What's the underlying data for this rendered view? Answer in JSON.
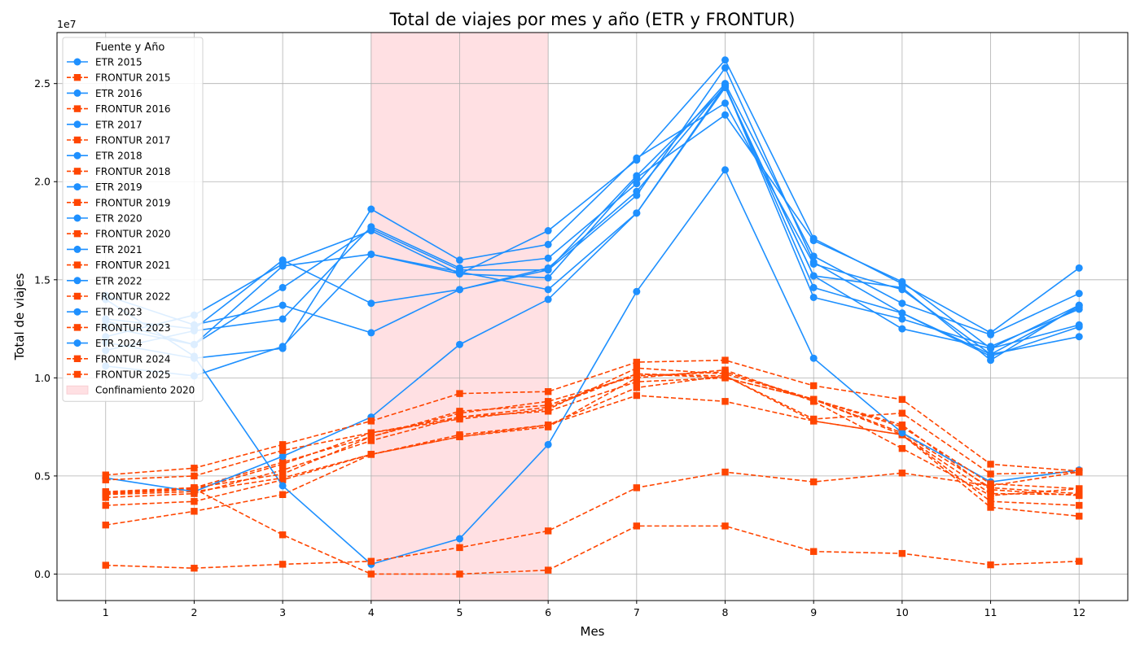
{
  "chart_data": {
    "type": "line",
    "title": "Total de viajes por mes y año (ETR y FRONTUR)",
    "xlabel": "Mes",
    "ylabel": "Total de viajes",
    "y_offset_label": "1e7",
    "x": [
      1,
      2,
      3,
      4,
      5,
      6,
      7,
      8,
      9,
      10,
      11,
      12
    ],
    "xlim": [
      0.45,
      12.55
    ],
    "ylim": [
      -1350000,
      27600000
    ],
    "y_ticks": [
      0,
      5000000,
      10000000,
      15000000,
      20000000,
      25000000
    ],
    "y_tick_labels": [
      "0.0",
      "0.5",
      "1.0",
      "1.5",
      "2.0",
      "2.5"
    ],
    "grid": true,
    "legend": {
      "title": "Fuente y Año",
      "position": "upper-left"
    },
    "shaded_region": {
      "label": "Confinamiento 2020",
      "x_start": 4,
      "x_end": 6,
      "color": "#ffe0e3"
    },
    "colors": {
      "etr": "#1e90ff",
      "frontur": "#ff4500"
    },
    "series": [
      {
        "name": "ETR 2015",
        "source": "ETR",
        "values": [
          14200000,
          12700000,
          13700000,
          12300000,
          14500000,
          15500000,
          19300000,
          25800000,
          15900000,
          13300000,
          11100000,
          12600000
        ]
      },
      {
        "name": "FRONTUR 2015",
        "source": "FRONTUR",
        "values": [
          2500000,
          3200000,
          4050000,
          6100000,
          7100000,
          7600000,
          9500000,
          10100000,
          7800000,
          7100000,
          3400000,
          2950000
        ]
      },
      {
        "name": "ETR 2016",
        "source": "ETR",
        "values": [
          13000000,
          12500000,
          16000000,
          13800000,
          14500000,
          15600000,
          19500000,
          24900000,
          14100000,
          13000000,
          11600000,
          13500000
        ]
      },
      {
        "name": "FRONTUR 2016",
        "source": "FRONTUR",
        "values": [
          3500000,
          3700000,
          4800000,
          6100000,
          7000000,
          7600000,
          9100000,
          8800000,
          7800000,
          7100000,
          3700000,
          3500000
        ]
      },
      {
        "name": "ETR 2017",
        "source": "ETR",
        "values": [
          12600000,
          11700000,
          14600000,
          17600000,
          15500000,
          15500000,
          20300000,
          24800000,
          15200000,
          14600000,
          10900000,
          13700000
        ]
      },
      {
        "name": "FRONTUR 2017",
        "source": "FRONTUR",
        "values": [
          3900000,
          4100000,
          5300000,
          6800000,
          8000000,
          8300000,
          9800000,
          10000000,
          8900000,
          7100000,
          4100000,
          4050000
        ]
      },
      {
        "name": "ETR 2018",
        "source": "ETR",
        "values": [
          12900000,
          11700000,
          15700000,
          16300000,
          15300000,
          15100000,
          20200000,
          23400000,
          17000000,
          14900000,
          11500000,
          12700000
        ]
      },
      {
        "name": "FRONTUR 2018",
        "source": "FRONTUR",
        "values": [
          4100000,
          4300000,
          5600000,
          7200000,
          8000000,
          8500000,
          10200000,
          10000000,
          8900000,
          7200000,
          4400000,
          4100000
        ]
      },
      {
        "name": "ETR 2019",
        "source": "ETR",
        "values": [
          11800000,
          11000000,
          11500000,
          18600000,
          16000000,
          16800000,
          21200000,
          24000000,
          15800000,
          14500000,
          11200000,
          13600000
        ]
      },
      {
        "name": "FRONTUR 2019",
        "source": "FRONTUR",
        "values": [
          4200000,
          4400000,
          5700000,
          7000000,
          8200000,
          8800000,
          10100000,
          10300000,
          8900000,
          7600000,
          4300000,
          4000000
        ]
      },
      {
        "name": "ETR 2020",
        "source": "ETR",
        "values": [
          14000000,
          11100000,
          4500000,
          500000,
          1800000,
          6600000,
          14400000,
          20600000,
          11000000,
          7200000,
          4700000,
          5300000
        ]
      },
      {
        "name": "FRONTUR 2020",
        "source": "FRONTUR",
        "values": [
          4100000,
          4350000,
          2000000,
          0,
          0,
          200000,
          2450000,
          2450000,
          1150000,
          1050000,
          470000,
          650000
        ]
      },
      {
        "name": "ETR 2021",
        "source": "ETR",
        "values": [
          4900000,
          4200000,
          6000000,
          8000000,
          11700000,
          14000000,
          18400000,
          24900000,
          14600000,
          13300000,
          11200000,
          12100000
        ]
      },
      {
        "name": "FRONTUR 2021",
        "source": "FRONTUR",
        "values": [
          450000,
          300000,
          500000,
          650000,
          1350000,
          2200000,
          4400000,
          5200000,
          4700000,
          5150000,
          4500000,
          5200000
        ]
      },
      {
        "name": "ETR 2022",
        "source": "ETR",
        "values": [
          10600000,
          10100000,
          11600000,
          16300000,
          15400000,
          14500000,
          18400000,
          24800000,
          15200000,
          12500000,
          11500000,
          13700000
        ]
      },
      {
        "name": "FRONTUR 2022",
        "source": "FRONTUR",
        "values": [
          4050000,
          4200000,
          4900000,
          6100000,
          7000000,
          7500000,
          10000000,
          10400000,
          8800000,
          6400000,
          4000000,
          4350000
        ]
      },
      {
        "name": "ETR 2023",
        "source": "ETR",
        "values": [
          11400000,
          12400000,
          13000000,
          17700000,
          15600000,
          16100000,
          19900000,
          25000000,
          16200000,
          13800000,
          12200000,
          14300000
        ]
      },
      {
        "name": "FRONTUR 2023",
        "source": "FRONTUR",
        "values": [
          4800000,
          5000000,
          6300000,
          7200000,
          7900000,
          8400000,
          10500000,
          10200000,
          8900000,
          7500000,
          4600000,
          4350000
        ]
      },
      {
        "name": "ETR 2024",
        "source": "ETR",
        "values": [
          12100000,
          13200000,
          15800000,
          17500000,
          15300000,
          17500000,
          21100000,
          26200000,
          17100000,
          14800000,
          12300000,
          15600000
        ]
      },
      {
        "name": "FRONTUR 2024",
        "source": "FRONTUR",
        "values": [
          5050000,
          5400000,
          6600000,
          7800000,
          9200000,
          9300000,
          10800000,
          10900000,
          9600000,
          8900000,
          5600000,
          5250000
        ]
      },
      {
        "name": "FRONTUR 2025",
        "source": "FRONTUR",
        "values": [
          4150000,
          4400000,
          5100000,
          7000000,
          8300000,
          8600000,
          10200000,
          10100000,
          7900000,
          8200000,
          5100000,
          5200000
        ]
      }
    ]
  }
}
